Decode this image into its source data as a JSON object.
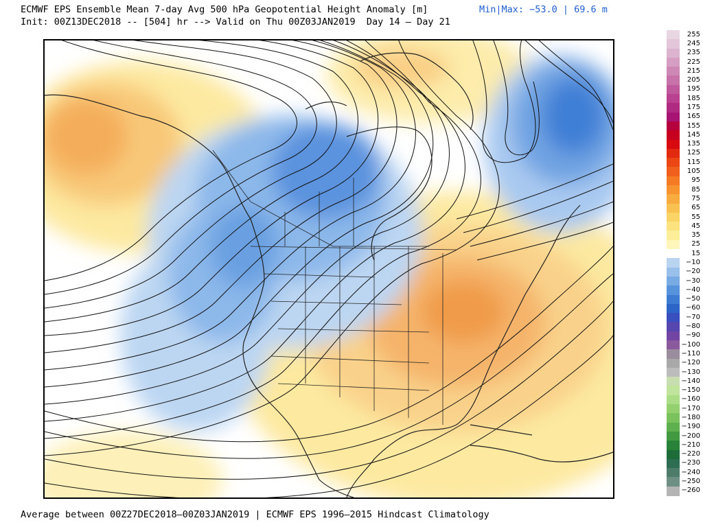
{
  "header": {
    "title": "ECMWF EPS Ensemble Mean 7-day Avg 500 hPa Geopotential Height Anomaly [m]",
    "minmax": "Min|Max: −53.0 | 69.6 m",
    "init": "Init: 00Z13DEC2018 -- [504] hr --> Valid on Thu 00Z03JAN2019  Day 14 – Day 21"
  },
  "footer": "Average between 00Z27DEC2018–00Z03JAN2019 | ECMWF EPS 1996–2015 Hindcast Climatology",
  "map": {
    "region": "North America",
    "features": [
      "positive-anomaly-alaska",
      "negative-anomaly-western-canada-us",
      "positive-anomaly-eastern-us",
      "negative-anomaly-north-atlantic",
      "positive-anomaly-greenland",
      "height-contours",
      "coastlines",
      "state-province-borders"
    ],
    "colors": {
      "pos_light": "#fff7bc",
      "pos_mid": "#fde38a",
      "pos_strong": "#f6a94e",
      "pos_max": "#ef8c3c",
      "neg_light": "#b6d3f0",
      "neg_mid": "#7fb0e6",
      "neg_strong": "#4a88d8",
      "neg_max": "#2b63c0"
    }
  },
  "colorbar": {
    "labels": [
      "255",
      "245",
      "235",
      "225",
      "215",
      "205",
      "195",
      "185",
      "175",
      "165",
      "155",
      "145",
      "135",
      "125",
      "115",
      "105",
      "95",
      "85",
      "75",
      "65",
      "55",
      "45",
      "35",
      "25",
      "15",
      "−10",
      "−20",
      "−30",
      "−40",
      "−50",
      "−60",
      "−70",
      "−80",
      "−90",
      "−100",
      "−110",
      "−120",
      "−130",
      "−140",
      "−150",
      "−160",
      "−170",
      "−180",
      "−190",
      "−200",
      "−210",
      "−220",
      "−230",
      "−240",
      "−250",
      "−260"
    ],
    "colors": [
      "#e9d6e3",
      "#e3c6da",
      "#dcb4cf",
      "#d59ec2",
      "#ce88b6",
      "#c772a9",
      "#c0589c",
      "#b9418f",
      "#b02a82",
      "#a81474",
      "#b5003d",
      "#c80020",
      "#d8090f",
      "#e22a10",
      "#ea4714",
      "#f05f1c",
      "#f47a24",
      "#f7942f",
      "#f8ab3e",
      "#f9c150",
      "#fad466",
      "#fce37f",
      "#fdee9a",
      "#fef6bb",
      "#ffffff",
      "#b8d4f1",
      "#98c0ea",
      "#78aae3",
      "#5693dc",
      "#3e7cd4",
      "#2c64c8",
      "#3a4fbf",
      "#5647b0",
      "#7245a4",
      "#8a5a9c",
      "#9a8e9e",
      "#a9a9aa",
      "#bcbcbc",
      "#c8ddb0",
      "#c0e49c",
      "#abdc86",
      "#94d070",
      "#79c25d",
      "#5eb04e",
      "#419941",
      "#288238",
      "#1c6d3a",
      "#2d6e52",
      "#4d7d6a",
      "#6e8f84",
      "#b4b4b4"
    ]
  }
}
